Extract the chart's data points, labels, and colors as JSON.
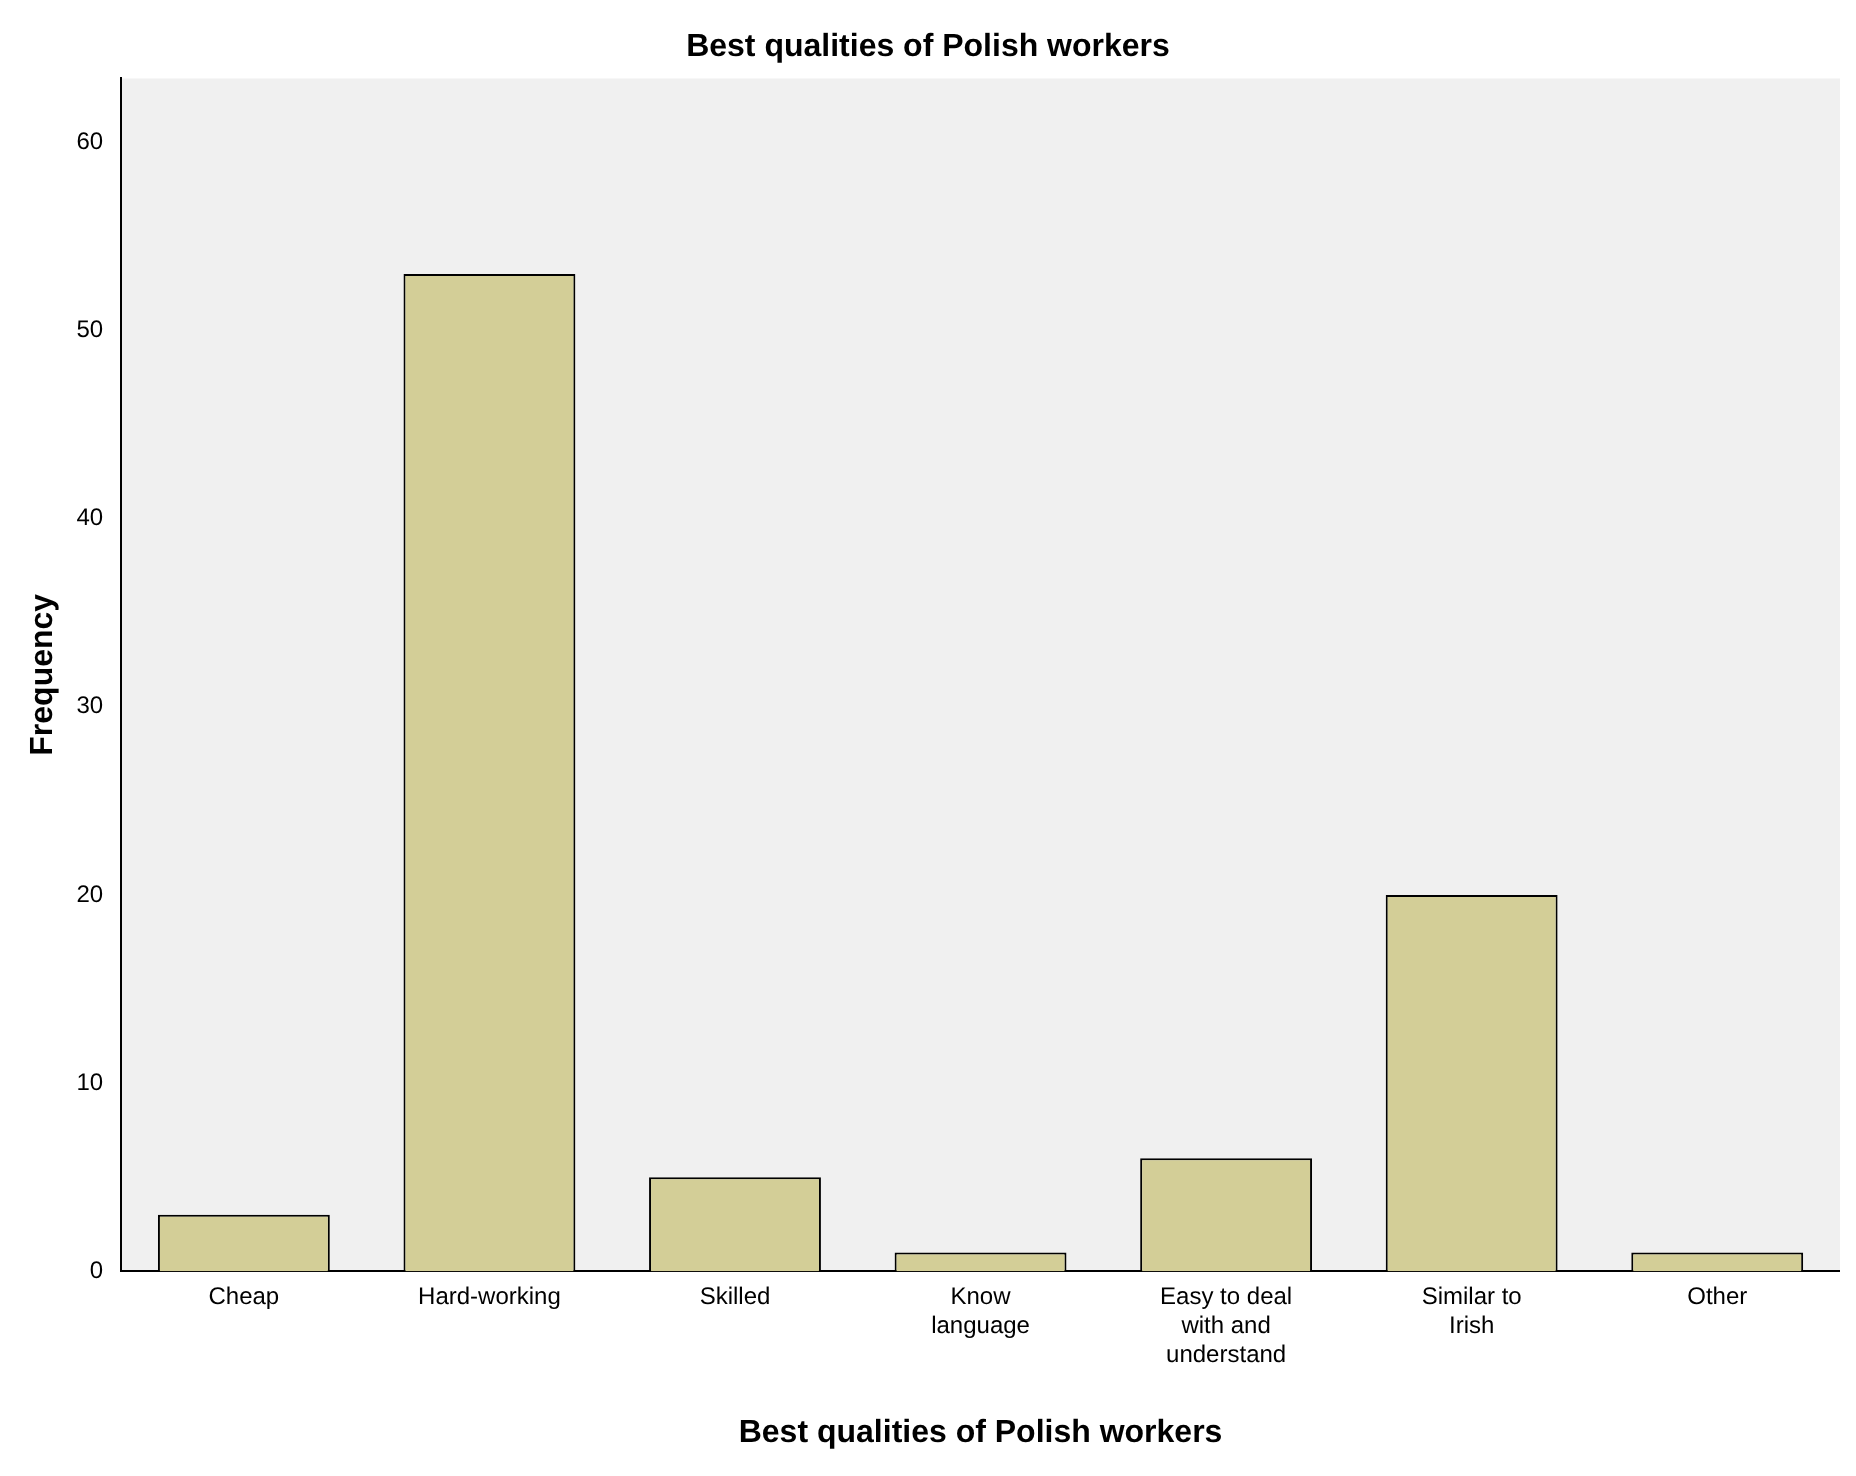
{
  "chart_data": {
    "type": "bar",
    "title": "Best qualities of Polish workers",
    "xlabel": "Best qualities of Polish workers",
    "ylabel": "Frequency",
    "categories": [
      "Cheap",
      "Hard-working",
      "Skilled",
      "Know language",
      "Easy to deal with and understand",
      "Similar to Irish",
      "Other"
    ],
    "values": [
      3,
      53,
      5,
      1,
      6,
      20,
      1
    ],
    "color": "#d3ce97",
    "ylim": [
      0,
      63.4
    ],
    "yticks": [
      0,
      10,
      20,
      30,
      40,
      50,
      60
    ],
    "grid": false,
    "legend": false
  }
}
